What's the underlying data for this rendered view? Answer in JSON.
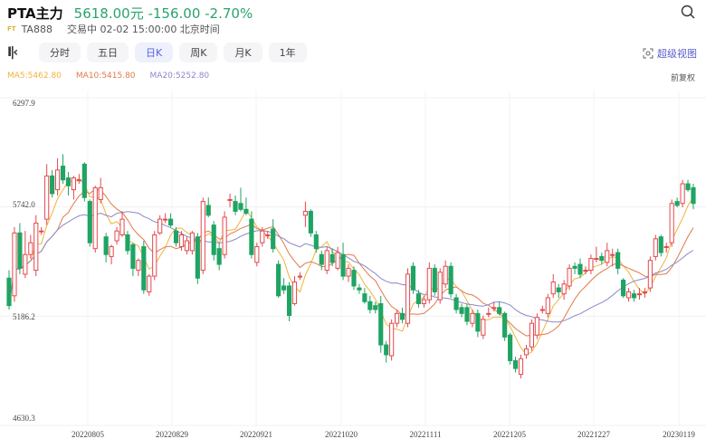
{
  "header": {
    "name": "PTA主力",
    "quote": "5618.00元 -156.00 -2.70%",
    "badge": "FT",
    "code": "TA888",
    "status": "交易中 02-02 15:00:00 北京时间",
    "search_icon": "search-icon"
  },
  "tabs": [
    {
      "label": "分时"
    },
    {
      "label": "五日"
    },
    {
      "label": "日K",
      "selected": true
    },
    {
      "label": "周K"
    },
    {
      "label": "月K"
    },
    {
      "label": "1年"
    }
  ],
  "super_view": "超级视图",
  "adjust": "前复权",
  "ma": {
    "ma5": "MA5:5462.80",
    "ma10": "MA10:5415.80",
    "ma20": "MA20:5252.80"
  },
  "colors": {
    "up": "#e5484d",
    "down": "#1fa463",
    "ma5": "#f0b33c",
    "ma10": "#e07a4a",
    "ma20": "#8c88c9",
    "quote": "#2aa36b",
    "accent": "#5b5fc7"
  },
  "chart_data": {
    "type": "candlestick",
    "ylim": [
      4630.3,
      6297.9
    ],
    "y_ticks": [
      "6297.9",
      "5742.0",
      "5186.2",
      "4630.3"
    ],
    "x_ticks": [
      "20220805",
      "20220829",
      "20220921",
      "20221020",
      "20221111",
      "20221205",
      "20221227",
      "20230119"
    ],
    "candles_ohlc": [
      [
        5380,
        5420,
        5220,
        5240
      ],
      [
        5290,
        5640,
        5260,
        5610
      ],
      [
        5610,
        5660,
        5400,
        5430
      ],
      [
        5400,
        5620,
        5380,
        5500
      ],
      [
        5500,
        5600,
        5480,
        5560
      ],
      [
        5420,
        5700,
        5390,
        5660
      ],
      [
        5620,
        5640,
        5600,
        5620
      ],
      [
        5680,
        5960,
        5650,
        5900
      ],
      [
        5900,
        5930,
        5790,
        5810
      ],
      [
        5830,
        5990,
        5800,
        5930
      ],
      [
        5950,
        6010,
        5860,
        5880
      ],
      [
        5890,
        5920,
        5800,
        5850
      ],
      [
        5830,
        5900,
        5780,
        5890
      ],
      [
        5880,
        5910,
        5860,
        5880
      ],
      [
        5960,
        5970,
        5770,
        5790
      ],
      [
        5770,
        5780,
        5540,
        5560
      ],
      [
        5530,
        5850,
        5510,
        5840
      ],
      [
        5780,
        5890,
        5760,
        5840
      ],
      [
        5590,
        5610,
        5460,
        5500
      ],
      [
        5490,
        5550,
        5450,
        5540
      ],
      [
        5570,
        5640,
        5550,
        5620
      ],
      [
        5600,
        5720,
        5590,
        5680
      ],
      [
        5600,
        5620,
        5500,
        5520
      ],
      [
        5550,
        5560,
        5390,
        5430
      ],
      [
        5420,
        5480,
        5390,
        5470
      ],
      [
        5540,
        5570,
        5300,
        5320
      ],
      [
        5310,
        5400,
        5290,
        5390
      ],
      [
        5390,
        5620,
        5370,
        5600
      ],
      [
        5610,
        5700,
        5600,
        5680
      ],
      [
        5680,
        5710,
        5660,
        5680
      ],
      [
        5680,
        5710,
        5640,
        5650
      ],
      [
        5620,
        5640,
        5540,
        5560
      ],
      [
        5540,
        5620,
        5520,
        5600
      ],
      [
        5520,
        5590,
        5500,
        5570
      ],
      [
        5520,
        5620,
        5500,
        5610
      ],
      [
        5590,
        5610,
        5350,
        5380
      ],
      [
        5420,
        5790,
        5400,
        5770
      ],
      [
        5750,
        5790,
        5690,
        5700
      ],
      [
        5650,
        5670,
        5470,
        5500
      ],
      [
        5530,
        5560,
        5420,
        5450
      ],
      [
        5500,
        5720,
        5480,
        5690
      ],
      [
        5780,
        5810,
        5740,
        5780
      ],
      [
        5770,
        5800,
        5700,
        5720
      ],
      [
        5760,
        5840,
        5720,
        5730
      ],
      [
        5730,
        5790,
        5700,
        5710
      ],
      [
        5680,
        5720,
        5480,
        5500
      ],
      [
        5460,
        5560,
        5440,
        5540
      ],
      [
        5560,
        5640,
        5540,
        5620
      ],
      [
        5600,
        5620,
        5580,
        5600
      ],
      [
        5630,
        5680,
        5510,
        5530
      ],
      [
        5450,
        5470,
        5280,
        5290
      ],
      [
        5340,
        5380,
        5300,
        5320
      ],
      [
        5340,
        5360,
        5160,
        5190
      ],
      [
        5250,
        5390,
        5240,
        5360
      ],
      [
        5390,
        5410,
        5370,
        5390
      ],
      [
        5700,
        5770,
        5640,
        5720
      ],
      [
        5720,
        5730,
        5590,
        5610
      ],
      [
        5600,
        5620,
        5510,
        5530
      ],
      [
        5500,
        5520,
        5420,
        5450
      ],
      [
        5420,
        5540,
        5400,
        5520
      ],
      [
        5500,
        5530,
        5440,
        5460
      ],
      [
        5430,
        5540,
        5420,
        5510
      ],
      [
        5500,
        5560,
        5370,
        5390
      ],
      [
        5390,
        5450,
        5360,
        5430
      ],
      [
        5420,
        5440,
        5320,
        5340
      ],
      [
        5330,
        5350,
        5300,
        5320
      ],
      [
        5300,
        5330,
        5250,
        5260
      ],
      [
        5260,
        5290,
        5200,
        5220
      ],
      [
        5240,
        5260,
        5200,
        5220
      ],
      [
        5250,
        5290,
        5000,
        5040
      ],
      [
        5040,
        5060,
        4950,
        4990
      ],
      [
        4985,
        5170,
        4960,
        5150
      ],
      [
        5150,
        5220,
        5130,
        5200
      ],
      [
        5200,
        5230,
        5150,
        5170
      ],
      [
        5150,
        5430,
        5130,
        5400
      ],
      [
        5440,
        5460,
        5300,
        5320
      ],
      [
        5300,
        5320,
        5230,
        5250
      ],
      [
        5250,
        5290,
        5230,
        5270
      ],
      [
        5270,
        5460,
        5250,
        5430
      ],
      [
        5430,
        5450,
        5290,
        5310
      ],
      [
        5270,
        5430,
        5250,
        5410
      ],
      [
        5350,
        5470,
        5330,
        5440
      ],
      [
        5440,
        5460,
        5280,
        5300
      ],
      [
        5280,
        5300,
        5200,
        5220
      ],
      [
        5230,
        5250,
        5180,
        5200
      ],
      [
        5230,
        5250,
        5140,
        5160
      ],
      [
        5150,
        5220,
        5130,
        5200
      ],
      [
        5200,
        5220,
        5080,
        5110
      ],
      [
        5090,
        5190,
        5070,
        5170
      ],
      [
        5200,
        5230,
        5180,
        5200
      ],
      [
        5230,
        5260,
        5210,
        5230
      ],
      [
        5230,
        5260,
        5190,
        5200
      ],
      [
        5200,
        5210,
        5060,
        5080
      ],
      [
        5090,
        5100,
        4940,
        4960
      ],
      [
        4960,
        4980,
        4900,
        4920
      ],
      [
        4890,
        4990,
        4870,
        4970
      ],
      [
        4990,
        5040,
        4970,
        5020
      ],
      [
        5030,
        5170,
        5010,
        5150
      ],
      [
        5090,
        5200,
        5070,
        5180
      ],
      [
        5220,
        5240,
        5200,
        5220
      ],
      [
        5200,
        5300,
        5180,
        5280
      ],
      [
        5300,
        5400,
        5280,
        5360
      ],
      [
        5330,
        5350,
        5280,
        5310
      ],
      [
        5300,
        5370,
        5270,
        5350
      ],
      [
        5340,
        5450,
        5320,
        5430
      ],
      [
        5440,
        5460,
        5400,
        5430
      ],
      [
        5450,
        5480,
        5380,
        5400
      ],
      [
        5420,
        5440,
        5400,
        5420
      ],
      [
        5420,
        5500,
        5400,
        5480
      ],
      [
        5480,
        5540,
        5460,
        5480
      ],
      [
        5490,
        5510,
        5450,
        5470
      ],
      [
        5460,
        5560,
        5440,
        5520
      ],
      [
        5500,
        5530,
        5440,
        5500
      ],
      [
        5510,
        5530,
        5400,
        5430
      ],
      [
        5370,
        5380,
        5280,
        5290
      ],
      [
        5280,
        5330,
        5260,
        5310
      ],
      [
        5300,
        5320,
        5260,
        5280
      ],
      [
        5300,
        5330,
        5270,
        5300
      ],
      [
        5310,
        5330,
        5280,
        5310
      ],
      [
        5330,
        5490,
        5310,
        5470
      ],
      [
        5490,
        5600,
        5470,
        5580
      ],
      [
        5590,
        5600,
        5490,
        5510
      ],
      [
        5540,
        5560,
        5510,
        5540
      ],
      [
        5560,
        5780,
        5540,
        5760
      ],
      [
        5770,
        5790,
        5740,
        5750
      ],
      [
        5760,
        5880,
        5740,
        5860
      ],
      [
        5860,
        5880,
        5820,
        5830
      ],
      [
        5840,
        5860,
        5730,
        5760
      ]
    ]
  }
}
